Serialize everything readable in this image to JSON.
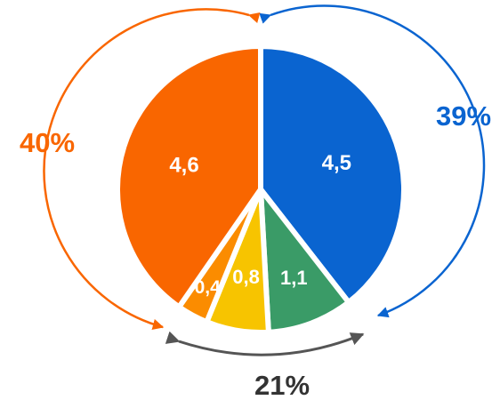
{
  "chart_data": {
    "type": "pie",
    "slices": [
      {
        "label": "4,5",
        "value": 4.5,
        "color": "#0a64d0"
      },
      {
        "label": "1,1",
        "value": 1.1,
        "color": "#3a9b67"
      },
      {
        "label": "0,8",
        "value": 0.8,
        "color": "#f7c400"
      },
      {
        "label": "0,4",
        "value": 0.4,
        "color": "#fb8c00"
      },
      {
        "label": "4,6",
        "value": 4.6,
        "color": "#f96600"
      }
    ],
    "groups": [
      {
        "label": "39%",
        "color": "#0a64d0",
        "slices": [
          0
        ]
      },
      {
        "label": "21%",
        "color": "#555555",
        "slices": [
          1,
          2,
          3
        ]
      },
      {
        "label": "40%",
        "color": "#f96600",
        "slices": [
          4
        ]
      }
    ]
  }
}
